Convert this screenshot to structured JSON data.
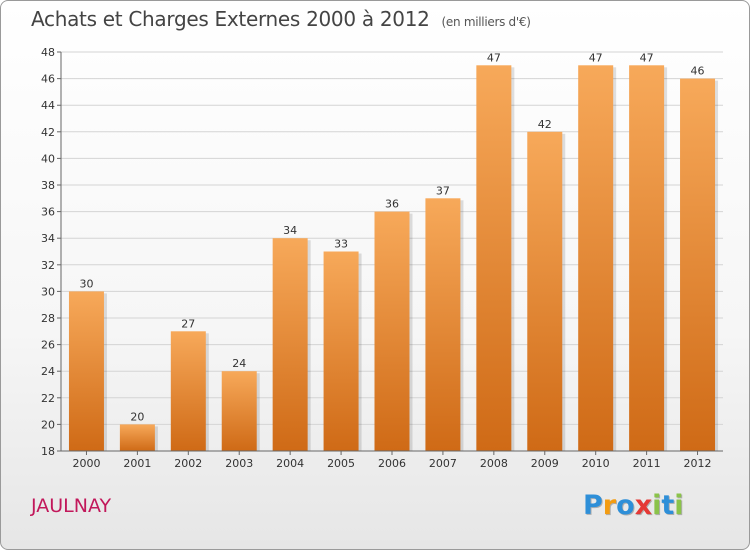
{
  "header": {
    "title": "Achats et Charges Externes 2000 à 2012",
    "unit": "(en milliers d'€)"
  },
  "footer": {
    "place": "JAULNAY",
    "logo_letters": [
      "P",
      "r",
      "o",
      "x",
      "i",
      "t",
      "i"
    ],
    "logo_colors": [
      "#2e8fd8",
      "#f39c12",
      "#2e8fd8",
      "#e53935",
      "#8bc34a",
      "#2e8fd8",
      "#8bc34a"
    ]
  },
  "chart_data": {
    "type": "bar",
    "title": "Achats et Charges Externes 2000 à 2012",
    "subtitle": "(en milliers d'€)",
    "xlabel": "",
    "ylabel": "",
    "categories": [
      "2000",
      "2001",
      "2002",
      "2003",
      "2004",
      "2005",
      "2006",
      "2007",
      "2008",
      "2009",
      "2010",
      "2011",
      "2012"
    ],
    "values": [
      30,
      20,
      27,
      24,
      34,
      33,
      36,
      37,
      47,
      42,
      47,
      47,
      46
    ],
    "data_labels": [
      "30",
      "20",
      "27",
      "24",
      "34",
      "33",
      "36",
      "37",
      "47",
      "42",
      "47",
      "47",
      "46"
    ],
    "ylim": [
      18,
      48
    ],
    "yticks": [
      "18",
      "20",
      "22",
      "24",
      "26",
      "28",
      "30",
      "32",
      "34",
      "36",
      "38",
      "40",
      "42",
      "44",
      "46",
      "48"
    ],
    "grid": true,
    "legend": "none",
    "bar_color_top": "#f7a95a",
    "bar_color_bottom": "#cf6a16"
  }
}
